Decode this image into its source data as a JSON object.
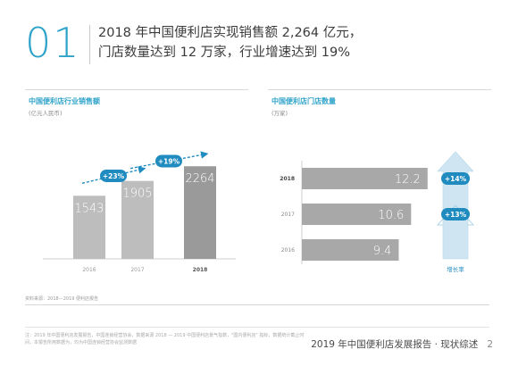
{
  "header": {
    "section_number": "01",
    "headline_line1": "2018 年中国便利店实现销售额 2,264 亿元，",
    "headline_line2": "门店数量达到 12 万家，行业增速达到 19%"
  },
  "left_chart": {
    "title": "中国便利店行业销售额",
    "unit": "(亿元人民币)"
  },
  "right_chart": {
    "title": "中国便利店门店数量",
    "unit": "(万家)",
    "growth_label": "增长率"
  },
  "source_note": "资料来源：2018－2019 便利店报告",
  "footnote": "注：2019 年中国便利店发展报告，中国连锁经营协会，数据来源 2018 — 2019 中国便利店景气指数，\"国内便利店\" 指标，数据统计截止时间，本报告所用数据为，均为中国连锁经营协会监测数据",
  "footer": {
    "report_title": "2019 年中国便利店发展报告 · 现状综述",
    "page_number": "2"
  },
  "colors": {
    "accent": "#2ea3c9",
    "bar_light": "#bdbdbd",
    "bar_dark": "#9a9a9a",
    "hbar": "#a8a8a8",
    "growth_bubble": "#1f8bbf",
    "arrow_light": "#cfe6f2"
  },
  "chart_data": [
    {
      "type": "bar",
      "title": "中国便利店行业销售额",
      "ylabel": "(亿元人民币)",
      "categories": [
        "2016",
        "2017",
        "2018"
      ],
      "values": [
        1543,
        1905,
        2264
      ],
      "value_labels": [
        "1543",
        "1905",
        "2264"
      ],
      "growth": [
        {
          "from": "2016",
          "to": "2017",
          "label": "+23%"
        },
        {
          "from": "2017",
          "to": "2018",
          "label": "+19%"
        }
      ],
      "highlight": "2018"
    },
    {
      "type": "bar",
      "orientation": "horizontal",
      "title": "中国便利店门店数量",
      "xlabel": "(万家)",
      "categories": [
        "2018",
        "2017",
        "2016"
      ],
      "values": [
        12.2,
        10.6,
        9.4
      ],
      "value_labels": [
        "12.2",
        "10.6",
        "9.4"
      ],
      "growth": [
        {
          "from": "2017",
          "to": "2018",
          "label": "+14%"
        },
        {
          "from": "2016",
          "to": "2017",
          "label": "+13%"
        }
      ],
      "growth_label": "增长率"
    }
  ]
}
